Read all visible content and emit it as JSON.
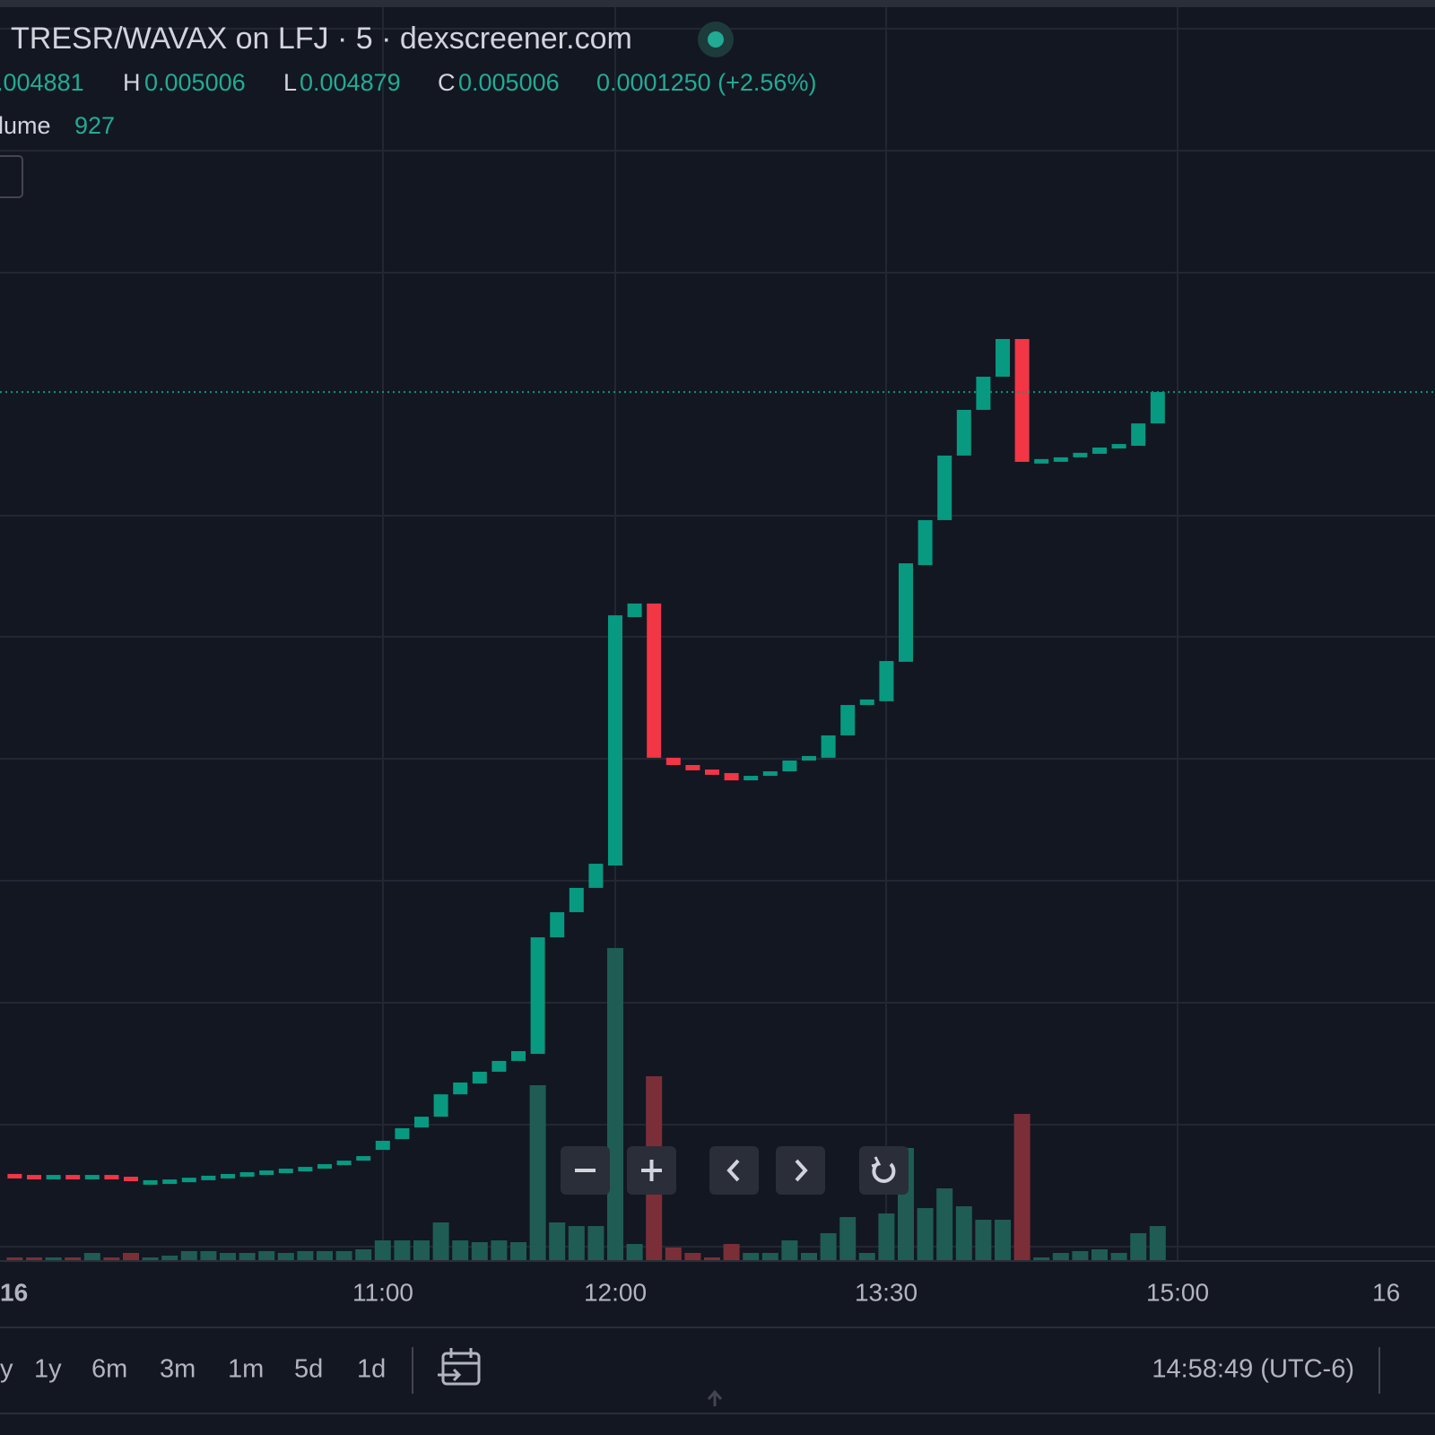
{
  "header": {
    "title": "TRESR/WAVAX on LFJ · 5 · dexscreener.com",
    "ohlc": [
      ".004881",
      "H",
      "0.005006",
      "L",
      "0.004879",
      "C",
      "0.005006",
      "0.0001250 (+2.56%)"
    ],
    "volume_label": "lume",
    "volume_value": "927"
  },
  "chart_data": {
    "type": "candlestick",
    "open": [
      0.001893,
      0.001889,
      0.001886,
      0.001889,
      0.001886,
      0.001889,
      0.001882,
      0.001864,
      0.001868,
      0.001871,
      0.001878,
      0.001886,
      0.001893,
      0.0019,
      0.001907,
      0.001914,
      0.001921,
      0.001932,
      0.001946,
      0.001989,
      0.002032,
      0.002078,
      0.002121,
      0.00221,
      0.002253,
      0.0023,
      0.002343,
      0.002371,
      0.002835,
      0.002935,
      0.003032,
      0.003121,
      0.00411,
      0.004164,
      0.00355,
      0.003521,
      0.003503,
      0.003489,
      0.003467,
      0.003478,
      0.003496,
      0.003539,
      0.00355,
      0.003639,
      0.00376,
      0.003775,
      0.003932,
      0.004317,
      0.004496,
      0.004753,
      0.004935,
      0.005067,
      0.005217,
      0.004728,
      0.004739,
      0.004746,
      0.00476,
      0.004782,
      0.004792,
      0.004881
    ],
    "close": [
      0.001889,
      0.001886,
      0.001889,
      0.001886,
      0.001889,
      0.001882,
      0.001871,
      0.001868,
      0.001871,
      0.001878,
      0.001886,
      0.001893,
      0.0019,
      0.001907,
      0.001914,
      0.001921,
      0.001932,
      0.001946,
      0.001964,
      0.002025,
      0.002075,
      0.002121,
      0.00221,
      0.002257,
      0.0023,
      0.002343,
      0.002382,
      0.002835,
      0.002935,
      0.003032,
      0.003128,
      0.004117,
      0.004164,
      0.00355,
      0.003521,
      0.0035,
      0.003482,
      0.00346,
      0.003478,
      0.003496,
      0.003539,
      0.003557,
      0.003639,
      0.00376,
      0.003782,
      0.003935,
      0.004324,
      0.004496,
      0.004753,
      0.004935,
      0.005067,
      0.005217,
      0.004728,
      0.004739,
      0.004746,
      0.004764,
      0.004785,
      0.004799,
      0.004881,
      0.005006
    ],
    "volume": [
      73,
      73,
      73,
      73,
      195,
      73,
      195,
      73,
      122,
      244,
      244,
      195,
      195,
      244,
      195,
      244,
      244,
      244,
      293,
      537,
      537,
      537,
      1025,
      537,
      488,
      537,
      488,
      4758,
      1025,
      927,
      927,
      8491,
      439,
      5002,
      342,
      195,
      73,
      439,
      195,
      195,
      537,
      195,
      732,
      1171,
      195,
      1269,
      3050,
      1415,
      1952,
      1464,
      1098,
      1098,
      3977,
      73,
      195,
      244,
      293,
      195,
      732,
      927
    ],
    "ylim": [
      0.00155,
      0.006531
    ],
    "volume_lim": [
      0,
      34040
    ],
    "up_color": "#089981",
    "down_color": "#f23645",
    "up_volume_color": "#1f5c54",
    "down_volume_color": "#7a2f38",
    "time_labels": [
      "16",
      "11:00",
      "12:00",
      "13:30",
      "15:00",
      "16"
    ]
  },
  "toolbar": {
    "ranges": [
      "y",
      "1y",
      "6m",
      "3m",
      "1m",
      "5d",
      "1d"
    ],
    "clock": "14:58:49 (UTC-6)"
  }
}
